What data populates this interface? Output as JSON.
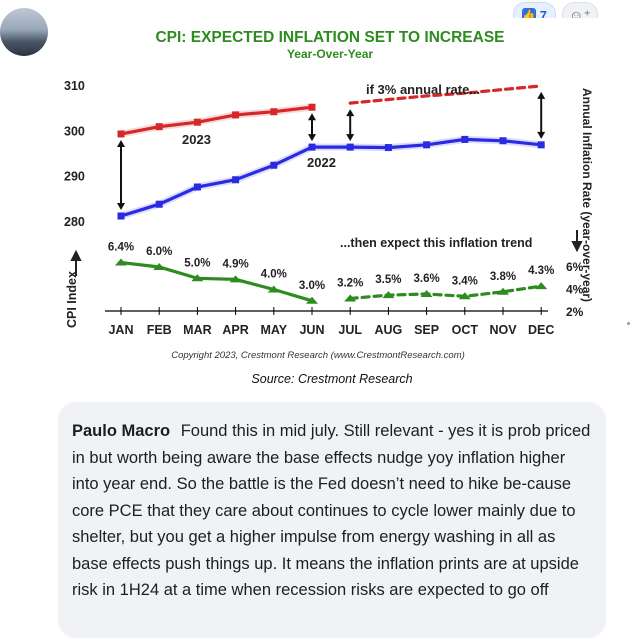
{
  "post": {
    "reaction_count": "7",
    "reaction_icon": "thumbs-up-icon",
    "add_reaction_icon": "add-reaction-icon"
  },
  "chart": {
    "title": "CPI: EXPECTED INFLATION SET TO INCREASE",
    "subtitle": "Year-Over-Year",
    "y_ticks": [
      "310",
      "300",
      "290",
      "280"
    ],
    "right_ticks": [
      "6%",
      "4%",
      "2%"
    ],
    "months": [
      "JAN",
      "FEB",
      "MAR",
      "APR",
      "MAY",
      "JUN",
      "JUL",
      "AUG",
      "SEP",
      "OCT",
      "NOV",
      "DEC"
    ],
    "label_2023": "2023",
    "label_2022": "2022",
    "annotation_rate": "if 3% annual rate...",
    "annotation_trend": "...then expect this inflation trend",
    "left_axis_label": "CPI Index",
    "right_axis_label": "Annual Inflation Rate (year-over-year)",
    "copyright": "Copyright 2023, Crestmont Research (www.CrestmontResearch.com)",
    "source": "Source: Crestmont Research",
    "colors": {
      "title": "#2e8b1f",
      "red": "#d62828",
      "blue": "#2a2ae0",
      "green": "#2e8b1f"
    }
  },
  "chart_data": {
    "type": "line",
    "x": [
      "JAN",
      "FEB",
      "MAR",
      "APR",
      "MAY",
      "JUN",
      "JUL",
      "AUG",
      "SEP",
      "OCT",
      "NOV",
      "DEC"
    ],
    "ylim": [
      280,
      310
    ],
    "series": [
      {
        "name": "2023",
        "values": [
          299.2,
          300.8,
          301.8,
          303.4,
          304.1,
          305.1,
          null,
          null,
          null,
          null,
          null,
          null
        ]
      },
      {
        "name": "",
        "values": [
          null,
          null,
          null,
          null,
          null,
          null,
          306.0,
          306.8,
          307.6,
          308.2,
          309.0,
          309.8
        ]
      },
      {
        "name": "2022",
        "values": [
          281.1,
          283.7,
          287.5,
          289.1,
          292.3,
          296.3,
          296.3,
          296.2,
          296.8,
          298.0,
          297.7,
          296.8
        ]
      },
      {
        "name": "",
        "values": [
          6.4,
          6.0,
          5.0,
          4.9,
          4.0,
          3.0,
          3.2,
          3.5,
          3.6,
          3.4,
          3.8,
          4.3
        ],
        "labels": [
          "6.4%",
          "6.0%",
          "5.0%",
          "4.9%",
          "4.0%",
          "3.0%",
          "3.2%",
          "3.5%",
          "3.6%",
          "3.4%",
          "3.8%",
          "4.3%"
        ]
      }
    ],
    "y2lim": [
      2,
      6
    ]
  },
  "comment": {
    "author": "Paulo Macro",
    "text": "Found this in mid july. Still relevant - yes it is prob priced in but worth being aware the base effects nudge yoy inflation higher into year end. So the battle is the Fed doesn’t need to hike be-cause core PCE that they care about continues to cycle lower mainly due to shelter, but you get a higher impulse from energy washing in all as base effects push things up. It means the inflation prints are at upside risk in 1H24 at a time when recession risks are expected to go off"
  }
}
